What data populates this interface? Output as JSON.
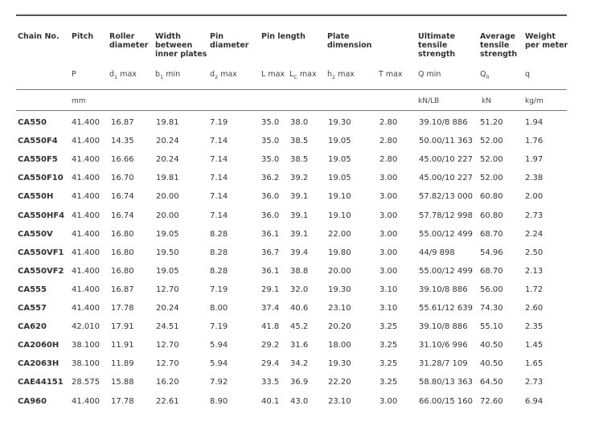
{
  "headers": {
    "chain_no": "Chain No.",
    "pitch": "Pitch",
    "roller_diameter": [
      "Roller",
      "diameter"
    ],
    "width_inner": [
      "Width",
      "between",
      "inner plates"
    ],
    "pin_diameter": [
      "Pin",
      "diameter"
    ],
    "pin_length": "Pin length",
    "plate_dimension": [
      "Plate",
      "dimension"
    ],
    "ultimate_tensile": [
      "Ultimate",
      "tensile",
      "strength"
    ],
    "average_tensile": [
      "Average",
      "tensile",
      "strength"
    ],
    "weight": [
      "Weight",
      "per meter"
    ]
  },
  "symbols": {
    "pitch": "P",
    "roller": {
      "base": "d",
      "sub": "1",
      "tail": " max"
    },
    "width": {
      "base": "b",
      "sub": "1",
      "tail": " min"
    },
    "pin": {
      "base": "d",
      "sub": "2",
      "tail": " max"
    },
    "l_max": "L max",
    "lc": {
      "base": "L",
      "sub": "C",
      "tail": " max"
    },
    "plate_h": {
      "base": "h",
      "sub": "2",
      "tail": " max"
    },
    "t_max": "T max",
    "q_min": "Q min",
    "q0": {
      "base": "Q",
      "sub": "0",
      "tail": ""
    },
    "q": "q"
  },
  "units": {
    "pitch": "mm",
    "ultimate": "kN/LB",
    "average": "kN",
    "weight": "kg/m"
  },
  "rows": [
    {
      "chain": "CA550",
      "pitch": "41.400",
      "roller": "16.87",
      "width": "19.81",
      "pin": "7.19",
      "l": "35.0",
      "lc": "38.0",
      "h": "19.30",
      "t": "2.80",
      "q": "39.10/8 886",
      "q0": "51.20",
      "w": "1.94"
    },
    {
      "chain": "CA550F4",
      "pitch": "41.400",
      "roller": "14.35",
      "width": "20.24",
      "pin": "7.14",
      "l": "35.0",
      "lc": "38.5",
      "h": "19.05",
      "t": "2.80",
      "q": "50.00/11 363",
      "q0": "52.00",
      "w": "1.76"
    },
    {
      "chain": "CA550F5",
      "pitch": "41.400",
      "roller": "16.66",
      "width": "20.24",
      "pin": "7.14",
      "l": "35.0",
      "lc": "38.5",
      "h": "19.05",
      "t": "2.80",
      "q": "45.00/10 227",
      "q0": "52.00",
      "w": "1.97"
    },
    {
      "chain": "CA550F10",
      "pitch": "41.400",
      "roller": "16.70",
      "width": "19.81",
      "pin": "7.14",
      "l": "36.2",
      "lc": "39.2",
      "h": "19.05",
      "t": "3.00",
      "q": "45.00/10 227",
      "q0": "52.00",
      "w": "2.38"
    },
    {
      "chain": "CA550H",
      "pitch": "41.400",
      "roller": "16.74",
      "width": "20.00",
      "pin": "7.14",
      "l": "36.0",
      "lc": "39.1",
      "h": "19.10",
      "t": "3.00",
      "q": "57.82/13 000",
      "q0": "60.80",
      "w": "2.00"
    },
    {
      "chain": "CA550HF4",
      "pitch": "41.400",
      "roller": "16.74",
      "width": "20.00",
      "pin": "7.14",
      "l": "36.0",
      "lc": "39.1",
      "h": "19.10",
      "t": "3.00",
      "q": "57.78/12 998",
      "q0": "60.80",
      "w": "2.73"
    },
    {
      "chain": "CA550V",
      "pitch": "41.400",
      "roller": "16.80",
      "width": "19.05",
      "pin": "8.28",
      "l": "36.1",
      "lc": "39.1",
      "h": "22.00",
      "t": "3.00",
      "q": "55.00/12 499",
      "q0": "68.70",
      "w": "2.24"
    },
    {
      "chain": "CA550VF1",
      "pitch": "41.400",
      "roller": "16.80",
      "width": "19.50",
      "pin": "8.28",
      "l": "36.7",
      "lc": "39.4",
      "h": "19.80",
      "t": "3.00",
      "q": "44/9 898",
      "q0": "54.96",
      "w": "2.50"
    },
    {
      "chain": "CA550VF2",
      "pitch": "41.400",
      "roller": "16.80",
      "width": "19.05",
      "pin": "8.28",
      "l": "36.1",
      "lc": "38.8",
      "h": "20.00",
      "t": "3.00",
      "q": "55.00/12 499",
      "q0": "68.70",
      "w": "2.13"
    },
    {
      "chain": "CA555",
      "pitch": "41.400",
      "roller": "16.87",
      "width": "12.70",
      "pin": "7.19",
      "l": "29.1",
      "lc": "32.0",
      "h": "19.30",
      "t": "3.10",
      "q": "39.10/8 886",
      "q0": "56.00",
      "w": "1.72"
    },
    {
      "chain": "CA557",
      "pitch": "41.400",
      "roller": "17.78",
      "width": "20.24",
      "pin": "8.00",
      "l": "37.4",
      "lc": "40.6",
      "h": "23.10",
      "t": "3.10",
      "q": "55.61/12 639",
      "q0": "74.30",
      "w": "2.60"
    },
    {
      "chain": "CA620",
      "pitch": "42.010",
      "roller": "17.91",
      "width": "24.51",
      "pin": "7.19",
      "l": "41.8",
      "lc": "45.2",
      "h": "20.20",
      "t": "3.25",
      "q": "39.10/8 886",
      "q0": "55.10",
      "w": "2.35"
    },
    {
      "chain": "CA2060H",
      "pitch": "38.100",
      "roller": "11.91",
      "width": "12.70",
      "pin": "5.94",
      "l": "29.2",
      "lc": "31.6",
      "h": "18.00",
      "t": "3.25",
      "q": "31.10/6 996",
      "q0": "40.50",
      "w": "1.45"
    },
    {
      "chain": "CA2063H",
      "pitch": "38.100",
      "roller": "11.89",
      "width": "12.70",
      "pin": "5.94",
      "l": "29.4",
      "lc": "34.2",
      "h": "19.30",
      "t": "3.25",
      "q": "31.28/7 109",
      "q0": "40.50",
      "w": "1.65"
    },
    {
      "chain": "CAE44151",
      "pitch": "28.575",
      "roller": "15.88",
      "width": "16.20",
      "pin": "7.92",
      "l": "33.5",
      "lc": "36.9",
      "h": "22.20",
      "t": "3.25",
      "q": "58.80/13 363",
      "q0": "64.50",
      "w": "2.73"
    },
    {
      "chain": "CA960",
      "pitch": "41.400",
      "roller": "17.78",
      "width": "22.61",
      "pin": "8.90",
      "l": "40.1",
      "lc": "43.0",
      "h": "23.10",
      "t": "3.00",
      "q": "66.00/15 160",
      "q0": "72.60",
      "w": "6.94"
    }
  ]
}
